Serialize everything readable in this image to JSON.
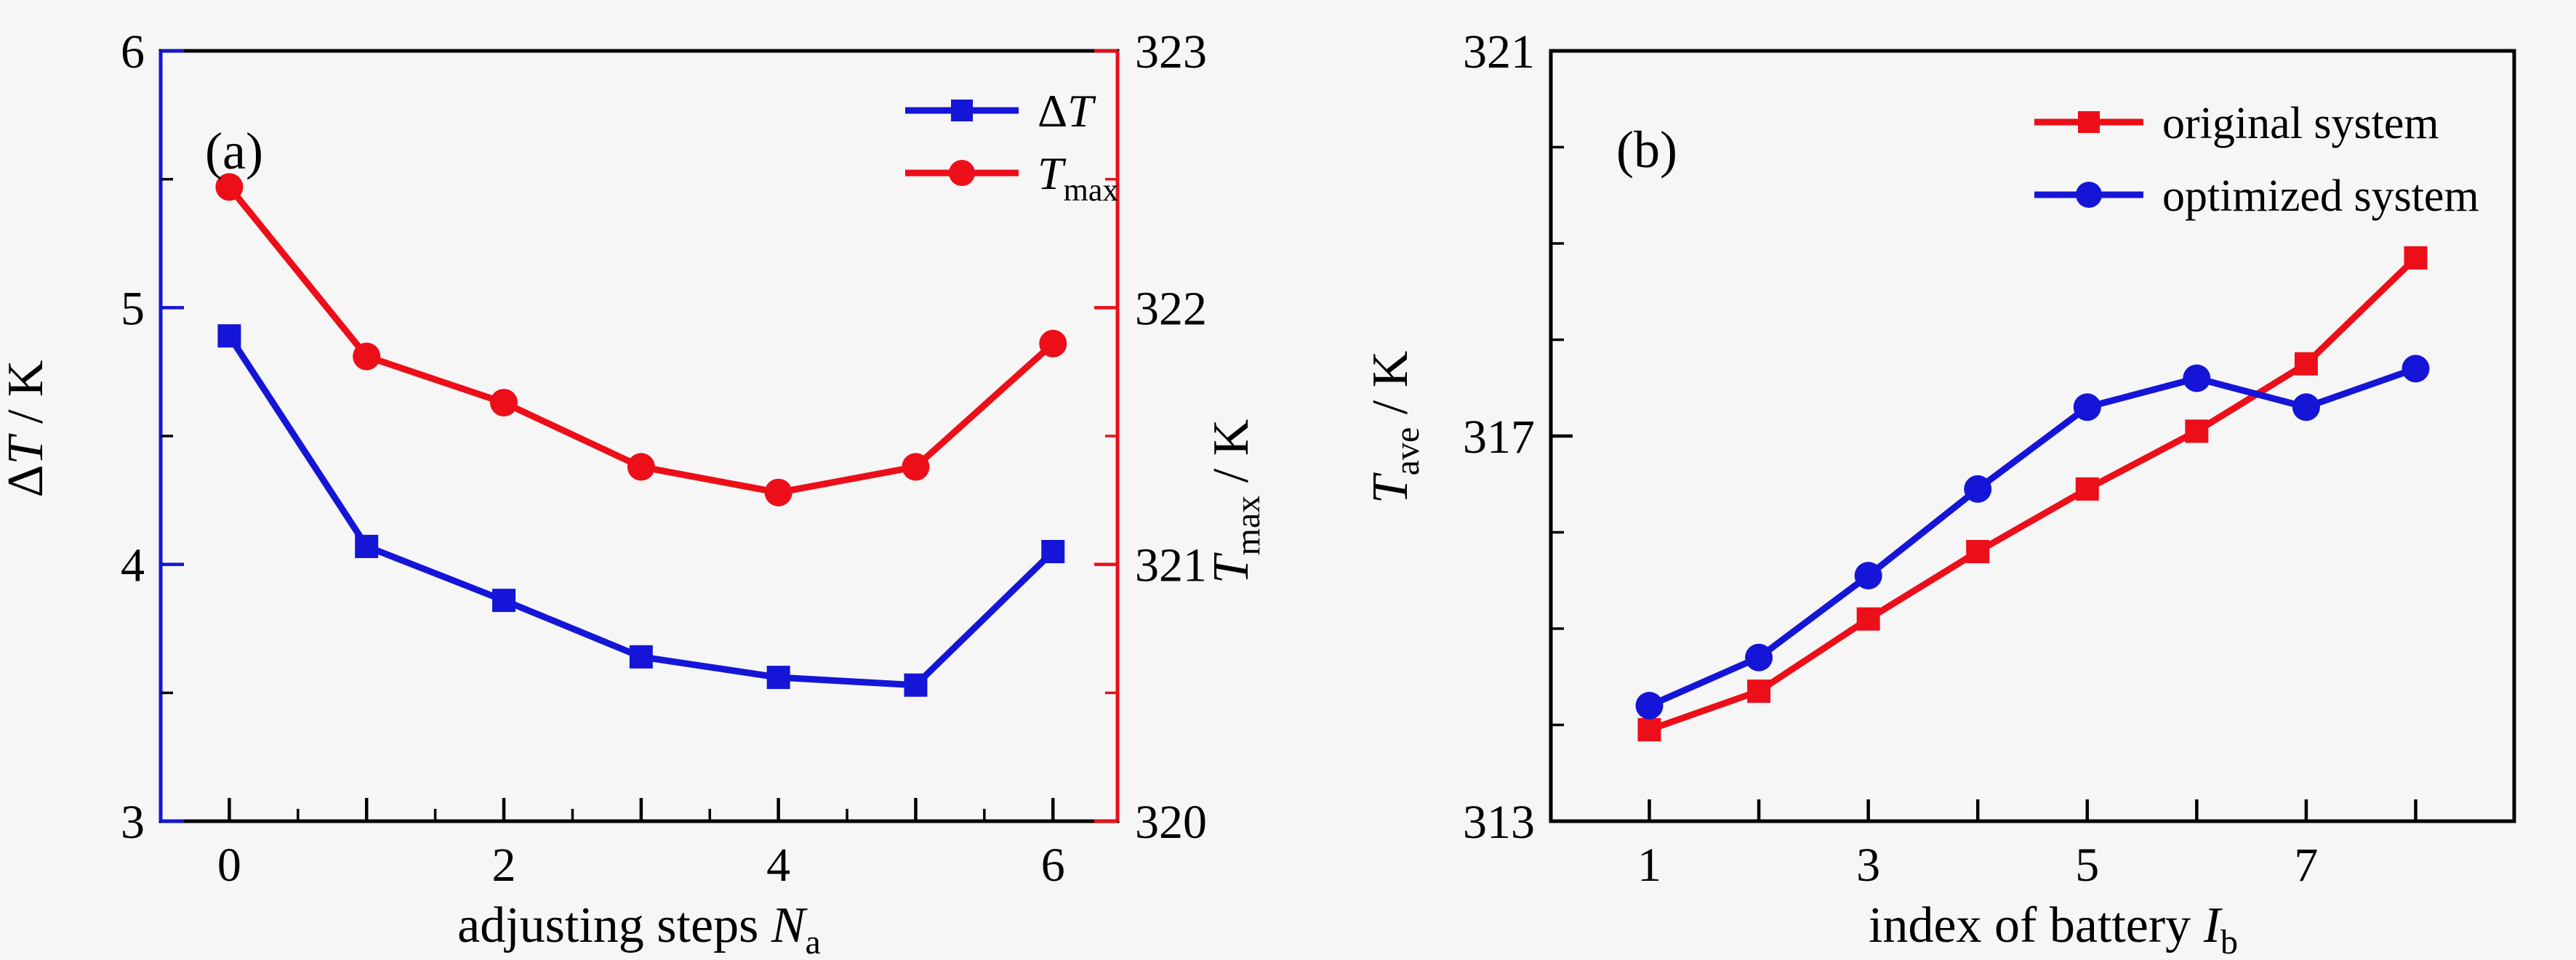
{
  "figure": {
    "background": "#f6f6f6",
    "text_color": "#000000",
    "accent_blue": "#1515d8",
    "accent_red": "#ec0e18"
  },
  "chart_data": [
    {
      "id": "a",
      "type": "line",
      "panel_label": "(a)",
      "x": [
        0,
        1,
        2,
        3,
        4,
        5,
        6
      ],
      "series": [
        {
          "name": "Δ*T*",
          "axis": "left",
          "marker": "square",
          "color": "#1515d8",
          "values": [
            4.89,
            4.07,
            3.86,
            3.64,
            3.56,
            3.53,
            4.05
          ]
        },
        {
          "name": "*T*_{max}",
          "axis": "right",
          "marker": "circle",
          "color": "#ec0e18",
          "values": [
            322.47,
            321.81,
            321.63,
            321.38,
            321.28,
            321.38,
            321.86
          ]
        }
      ],
      "axes": {
        "bottom": {
          "label": "adjusting steps *N*_{a}",
          "range": [
            -0.5,
            6.47
          ],
          "major_ticks": [
            0,
            1,
            2,
            3,
            4,
            5,
            6
          ],
          "minor_ticks": [
            0.5,
            1.5,
            2.5,
            3.5,
            4.5,
            5.5
          ],
          "labeled_ticks": [
            0,
            2,
            4,
            6
          ],
          "color": "#000000"
        },
        "left": {
          "label": "Δ*T* / K",
          "range": [
            3,
            6
          ],
          "major_ticks": [
            3,
            4,
            5,
            6
          ],
          "minor_ticks": [
            3.5,
            4.5,
            5.5
          ],
          "labeled_ticks": [
            3,
            4,
            5,
            6
          ],
          "color": "#1515d8",
          "minor_color": "#000000"
        },
        "right": {
          "label": "*T*_{max} / K",
          "range": [
            320,
            323
          ],
          "major_ticks": [
            320,
            321,
            322,
            323
          ],
          "minor_ticks": [
            320.5,
            321.5,
            322.5
          ],
          "labeled_ticks": [
            320,
            321,
            322,
            323
          ],
          "color": "#ec0e18",
          "minor_color": "#ec0e18"
        },
        "top": {
          "color": "#000000"
        }
      },
      "legend": {
        "position": "top-right",
        "entries": [
          "Δ*T*",
          "*T*_{max}"
        ]
      },
      "grid": false
    },
    {
      "id": "b",
      "type": "line",
      "panel_label": "(b)",
      "x": [
        1,
        2,
        3,
        4,
        5,
        6,
        7,
        8
      ],
      "series": [
        {
          "name": "original system",
          "axis": "left",
          "marker": "square",
          "color": "#ec0e18",
          "values": [
            313.95,
            314.35,
            315.1,
            315.8,
            316.45,
            317.05,
            317.75,
            318.85
          ]
        },
        {
          "name": "optimized system",
          "axis": "left",
          "marker": "circle",
          "color": "#1515d8",
          "values": [
            314.2,
            314.7,
            315.55,
            316.45,
            317.3,
            317.6,
            317.3,
            317.7
          ]
        }
      ],
      "axes": {
        "bottom": {
          "label": "index of battery  *I*_{b}",
          "range": [
            0.1,
            8.9
          ],
          "major_ticks": [
            1,
            2,
            3,
            4,
            5,
            6,
            7,
            8
          ],
          "minor_ticks": [],
          "labeled_ticks": [
            1,
            3,
            5,
            7
          ],
          "color": "#000000"
        },
        "left": {
          "label": "*T*_{ave} / K",
          "range": [
            313,
            321
          ],
          "major_ticks": [
            313,
            317,
            321
          ],
          "minor_ticks": [
            314,
            315,
            316,
            318,
            319,
            320
          ],
          "labeled_ticks": [
            313,
            317,
            321
          ],
          "color": "#000000",
          "minor_color": "#000000"
        },
        "right": {
          "color": "#000000"
        },
        "top": {
          "color": "#000000"
        }
      },
      "legend": {
        "position": "top-right",
        "entries": [
          "original system",
          "optimized system"
        ]
      },
      "grid": false
    }
  ]
}
